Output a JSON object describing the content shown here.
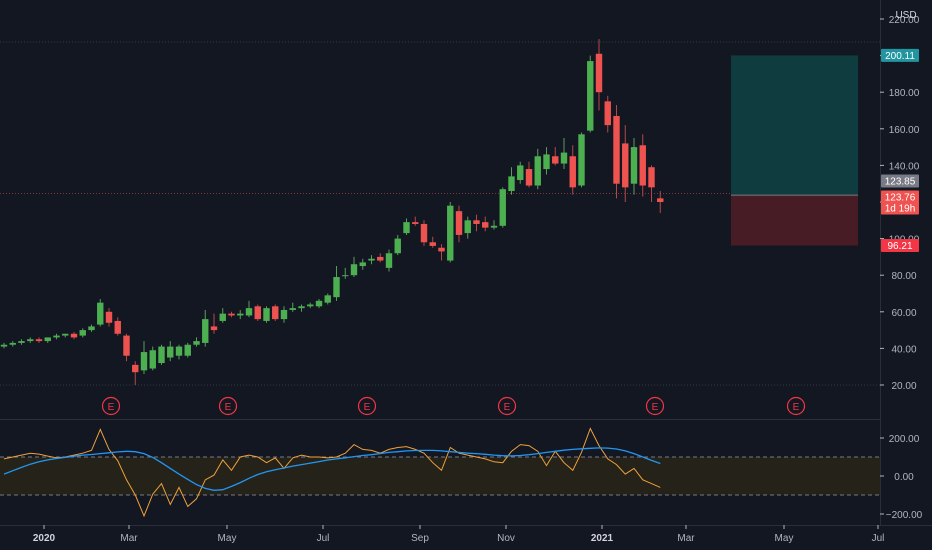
{
  "chart_data": {
    "type": "candlestick",
    "currency": "USD",
    "colors": {
      "up": "#26a69a",
      "up_body": "#4caf50",
      "down": "#ef5350",
      "background": "#131722",
      "grid": "#2a2e39",
      "text": "#b2b5be",
      "indicator_fast": "#2196f3",
      "indicator_slow": "#f0a13a"
    },
    "price_axis": {
      "ticks": [
        20,
        40,
        60,
        80,
        100,
        120,
        140,
        160,
        180,
        200,
        220
      ],
      "tick_labels": [
        "20.00",
        "40.00",
        "60.00",
        "80.00",
        "100.00",
        "120.00",
        "140.00",
        "160.00",
        "180.00",
        "200.00",
        "220.00"
      ],
      "range": [
        14,
        222
      ]
    },
    "time_axis": {
      "labels": [
        "2020",
        "Mar",
        "May",
        "Jul",
        "Sep",
        "Nov",
        "2021",
        "Mar",
        "May",
        "Jul"
      ]
    },
    "candles": [
      {
        "o": 41,
        "h": 43,
        "l": 40,
        "c": 42
      },
      {
        "o": 42,
        "h": 44,
        "l": 41,
        "c": 43
      },
      {
        "o": 43,
        "h": 45,
        "l": 42,
        "c": 44
      },
      {
        "o": 44,
        "h": 46,
        "l": 43,
        "c": 45
      },
      {
        "o": 45,
        "h": 46,
        "l": 43,
        "c": 44
      },
      {
        "o": 44,
        "h": 46,
        "l": 43,
        "c": 46
      },
      {
        "o": 46,
        "h": 48,
        "l": 45,
        "c": 47
      },
      {
        "o": 47,
        "h": 48,
        "l": 46,
        "c": 48
      },
      {
        "o": 48,
        "h": 49,
        "l": 45,
        "c": 46
      },
      {
        "o": 47,
        "h": 51,
        "l": 46,
        "c": 50
      },
      {
        "o": 50,
        "h": 53,
        "l": 49,
        "c": 52
      },
      {
        "o": 53,
        "h": 67,
        "l": 52,
        "c": 65
      },
      {
        "o": 60,
        "h": 62,
        "l": 52,
        "c": 54
      },
      {
        "o": 55,
        "h": 57,
        "l": 47,
        "c": 48
      },
      {
        "o": 47,
        "h": 48,
        "l": 33,
        "c": 36
      },
      {
        "o": 31,
        "h": 33,
        "l": 20,
        "c": 27
      },
      {
        "o": 28,
        "h": 44,
        "l": 26,
        "c": 38
      },
      {
        "o": 29,
        "h": 41,
        "l": 28,
        "c": 39
      },
      {
        "o": 32,
        "h": 42,
        "l": 31,
        "c": 41
      },
      {
        "o": 35,
        "h": 44,
        "l": 33,
        "c": 41
      },
      {
        "o": 36,
        "h": 42,
        "l": 34,
        "c": 41
      },
      {
        "o": 36,
        "h": 43,
        "l": 35,
        "c": 42
      },
      {
        "o": 42,
        "h": 46,
        "l": 41,
        "c": 44
      },
      {
        "o": 43,
        "h": 61,
        "l": 41,
        "c": 56
      },
      {
        "o": 52,
        "h": 59,
        "l": 48,
        "c": 50
      },
      {
        "o": 55,
        "h": 62,
        "l": 54,
        "c": 59
      },
      {
        "o": 59,
        "h": 60,
        "l": 57,
        "c": 58
      },
      {
        "o": 58,
        "h": 61,
        "l": 56,
        "c": 59
      },
      {
        "o": 58,
        "h": 66,
        "l": 57,
        "c": 62
      },
      {
        "o": 63,
        "h": 64,
        "l": 55,
        "c": 56
      },
      {
        "o": 55,
        "h": 63,
        "l": 54,
        "c": 62
      },
      {
        "o": 63,
        "h": 64,
        "l": 55,
        "c": 56
      },
      {
        "o": 56,
        "h": 63,
        "l": 54,
        "c": 61
      },
      {
        "o": 61,
        "h": 65,
        "l": 60,
        "c": 62
      },
      {
        "o": 62,
        "h": 64,
        "l": 60,
        "c": 63
      },
      {
        "o": 63,
        "h": 65,
        "l": 62,
        "c": 64
      },
      {
        "o": 63,
        "h": 67,
        "l": 62,
        "c": 66
      },
      {
        "o": 65,
        "h": 70,
        "l": 64,
        "c": 69
      },
      {
        "o": 68,
        "h": 85,
        "l": 66,
        "c": 79
      },
      {
        "o": 80,
        "h": 84,
        "l": 78,
        "c": 80
      },
      {
        "o": 80,
        "h": 90,
        "l": 79,
        "c": 86
      },
      {
        "o": 85,
        "h": 89,
        "l": 83,
        "c": 87
      },
      {
        "o": 88,
        "h": 91,
        "l": 86,
        "c": 89
      },
      {
        "o": 90,
        "h": 92,
        "l": 87,
        "c": 88
      },
      {
        "o": 84,
        "h": 94,
        "l": 82,
        "c": 92
      },
      {
        "o": 92,
        "h": 102,
        "l": 91,
        "c": 100
      },
      {
        "o": 103,
        "h": 111,
        "l": 102,
        "c": 109
      },
      {
        "o": 109,
        "h": 112,
        "l": 107,
        "c": 108
      },
      {
        "o": 108,
        "h": 110,
        "l": 96,
        "c": 98
      },
      {
        "o": 98,
        "h": 101,
        "l": 95,
        "c": 96
      },
      {
        "o": 95,
        "h": 97,
        "l": 88,
        "c": 93
      },
      {
        "o": 88,
        "h": 120,
        "l": 87,
        "c": 118
      },
      {
        "o": 115,
        "h": 118,
        "l": 98,
        "c": 102
      },
      {
        "o": 103,
        "h": 112,
        "l": 100,
        "c": 110
      },
      {
        "o": 110,
        "h": 113,
        "l": 104,
        "c": 108
      },
      {
        "o": 109,
        "h": 112,
        "l": 104,
        "c": 106
      },
      {
        "o": 106,
        "h": 110,
        "l": 105,
        "c": 107
      },
      {
        "o": 107,
        "h": 128,
        "l": 106,
        "c": 127
      },
      {
        "o": 126,
        "h": 139,
        "l": 124,
        "c": 134
      },
      {
        "o": 132,
        "h": 142,
        "l": 130,
        "c": 140
      },
      {
        "o": 138,
        "h": 142,
        "l": 128,
        "c": 129
      },
      {
        "o": 129,
        "h": 149,
        "l": 127,
        "c": 145
      },
      {
        "o": 138,
        "h": 150,
        "l": 135,
        "c": 146
      },
      {
        "o": 145,
        "h": 150,
        "l": 140,
        "c": 141
      },
      {
        "o": 141,
        "h": 155,
        "l": 138,
        "c": 147
      },
      {
        "o": 145,
        "h": 151,
        "l": 124,
        "c": 128
      },
      {
        "o": 129,
        "h": 158,
        "l": 128,
        "c": 157
      },
      {
        "o": 159,
        "h": 200,
        "l": 158,
        "c": 197
      },
      {
        "o": 201,
        "h": 209,
        "l": 170,
        "c": 180
      },
      {
        "o": 175,
        "h": 178,
        "l": 158,
        "c": 162
      },
      {
        "o": 167,
        "h": 173,
        "l": 122,
        "c": 130
      },
      {
        "o": 152,
        "h": 162,
        "l": 120,
        "c": 128
      },
      {
        "o": 130,
        "h": 155,
        "l": 124,
        "c": 150
      },
      {
        "o": 151,
        "h": 157,
        "l": 123,
        "c": 129
      },
      {
        "o": 139,
        "h": 140,
        "l": 120,
        "c": 128
      },
      {
        "o": 122,
        "h": 126,
        "l": 114,
        "c": 120
      }
    ],
    "position": {
      "target": 200.11,
      "entry": 123.76,
      "stop": 96.21
    },
    "price_labels": [
      {
        "value": 200.11,
        "text": "200.11",
        "color": "#2196a0"
      },
      {
        "value": 123.85,
        "text": "123.85",
        "color": "#787b86"
      },
      {
        "value": 123.76,
        "text": "123.76",
        "sub": "1d 19h",
        "color": "#ef5350"
      },
      {
        "value": 96.21,
        "text": "96.21",
        "color": "#f23645"
      }
    ],
    "earnings_markers": [
      "E",
      "E",
      "E",
      "E",
      "E",
      "E"
    ],
    "indicator": {
      "axis_labels": [
        "200.00",
        "0.00",
        "−200.00"
      ],
      "axis_values": [
        200,
        0,
        -200
      ],
      "range": [
        -240,
        240
      ],
      "band": [
        -100,
        100
      ],
      "fast": [
        10,
        28,
        45,
        62,
        75,
        85,
        92,
        98,
        104,
        110,
        113,
        118,
        122,
        127,
        130,
        128,
        118,
        98,
        70,
        40,
        10,
        -18,
        -45,
        -65,
        -75,
        -72,
        -55,
        -35,
        -12,
        8,
        22,
        33,
        42,
        52,
        60,
        68,
        76,
        84,
        90,
        96,
        102,
        108,
        112,
        118,
        124,
        128,
        132,
        134,
        135,
        135,
        132,
        128,
        124,
        120,
        118,
        114,
        110,
        107,
        106,
        108,
        112,
        118,
        124,
        130,
        136,
        140,
        143,
        146,
        148,
        147,
        142,
        132,
        118,
        100,
        82,
        66
      ],
      "slow": [
        90,
        100,
        110,
        120,
        115,
        105,
        95,
        100,
        110,
        120,
        135,
        245,
        140,
        80,
        -20,
        -100,
        -210,
        -95,
        -40,
        -150,
        -60,
        -160,
        -120,
        -20,
        5,
        85,
        30,
        100,
        110,
        100,
        70,
        95,
        40,
        95,
        110,
        100,
        100,
        95,
        100,
        120,
        165,
        140,
        135,
        120,
        140,
        150,
        155,
        140,
        120,
        70,
        30,
        150,
        120,
        110,
        100,
        90,
        75,
        70,
        130,
        165,
        160,
        130,
        55,
        130,
        70,
        30,
        125,
        250,
        160,
        90,
        60,
        10,
        40,
        -20,
        -40,
        -60
      ]
    }
  }
}
